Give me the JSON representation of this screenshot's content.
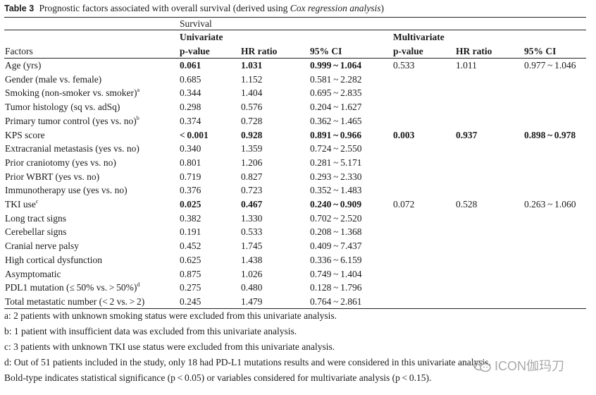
{
  "caption": {
    "label": "Table 3",
    "text": "Prognostic factors associated with overall survival (derived using ",
    "italic": "Cox regression analysis",
    "close": ")"
  },
  "header": {
    "group": "Survival",
    "univariate": "Univariate",
    "multivariate": "Multivariate",
    "factors": "Factors",
    "pvalue": "p-value",
    "hr": "HR ratio",
    "ci": "95% CI"
  },
  "rows": [
    {
      "factor": "Age (yrs)",
      "sup": "",
      "up": "0.061",
      "uhr": "1.031",
      "uci": "0.999 ~ 1.064",
      "ubold": true,
      "mp": "0.533",
      "mhr": "1.011",
      "mci": "0.977 ~ 1.046",
      "mbold": false
    },
    {
      "factor": "Gender (male vs. female)",
      "sup": "",
      "up": "0.685",
      "uhr": "1.152",
      "uci": "0.581 ~ 2.282",
      "ubold": false
    },
    {
      "factor": "Smoking (non-smoker vs. smoker)",
      "sup": "a",
      "up": "0.344",
      "uhr": "1.404",
      "uci": "0.695 ~ 2.835",
      "ubold": false
    },
    {
      "factor": "Tumor histology (sq vs. adSq)",
      "sup": "",
      "up": "0.298",
      "uhr": "0.576",
      "uci": "0.204 ~ 1.627",
      "ubold": false
    },
    {
      "factor": "Primary tumor control (yes vs. no)",
      "sup": "b",
      "up": "0.374",
      "uhr": "0.728",
      "uci": "0.362 ~ 1.465",
      "ubold": false
    },
    {
      "factor": "KPS score",
      "sup": "",
      "up": "< 0.001",
      "uhr": "0.928",
      "uci": "0.891 ~ 0.966",
      "ubold": true,
      "mp": "0.003",
      "mhr": "0.937",
      "mci": "0.898 ~ 0.978",
      "mbold": true
    },
    {
      "factor": "Extracranial metastasis (yes vs. no)",
      "sup": "",
      "up": "0.340",
      "uhr": "1.359",
      "uci": "0.724 ~ 2.550",
      "ubold": false
    },
    {
      "factor": "Prior craniotomy (yes vs. no)",
      "sup": "",
      "up": "0.801",
      "uhr": "1.206",
      "uci": "0.281 ~ 5.171",
      "ubold": false
    },
    {
      "factor": "Prior WBRT (yes vs. no)",
      "sup": "",
      "up": "0.719",
      "uhr": "0.827",
      "uci": "0.293 ~ 2.330",
      "ubold": false
    },
    {
      "factor": "Immunotherapy use (yes vs. no)",
      "sup": "",
      "up": "0.376",
      "uhr": "0.723",
      "uci": "0.352 ~ 1.483",
      "ubold": false
    },
    {
      "factor": "TKI use",
      "sup": "c",
      "up": "0.025",
      "uhr": "0.467",
      "uci": "0.240 ~ 0.909",
      "ubold": true,
      "mp": "0.072",
      "mhr": "0.528",
      "mci": "0.263 ~ 1.060",
      "mbold": false
    },
    {
      "factor": "Long tract signs",
      "sup": "",
      "up": "0.382",
      "uhr": "1.330",
      "uci": "0.702 ~ 2.520",
      "ubold": false
    },
    {
      "factor": "Cerebellar signs",
      "sup": "",
      "up": "0.191",
      "uhr": "0.533",
      "uci": "0.208 ~ 1.368",
      "ubold": false
    },
    {
      "factor": "Cranial nerve palsy",
      "sup": "",
      "up": "0.452",
      "uhr": "1.745",
      "uci": "0.409 ~ 7.437",
      "ubold": false
    },
    {
      "factor": "High cortical dysfunction",
      "sup": "",
      "up": "0.625",
      "uhr": "1.438",
      "uci": "0.336 ~ 6.159",
      "ubold": false
    },
    {
      "factor": "Asymptomatic",
      "sup": "",
      "up": "0.875",
      "uhr": "1.026",
      "uci": "0.749 ~ 1.404",
      "ubold": false
    },
    {
      "factor": "PDL1 mutation (≤ 50% vs. > 50%)",
      "sup": "d",
      "up": "0.275",
      "uhr": "0.480",
      "uci": "0.128 ~ 1.796",
      "ubold": false
    },
    {
      "factor": "Total metastatic number (< 2 vs. > 2)",
      "sup": "",
      "up": "0.245",
      "uhr": "1.479",
      "uci": "0.764 ~ 2.861",
      "ubold": false
    }
  ],
  "notes": [
    "a: 2 patients with unknown smoking status were excluded from this univariate analysis.",
    "b: 1 patient with insufficient data was excluded from this univariate analysis.",
    "c: 3 patients with unknown TKI use status were excluded from this univariate analysis.",
    "d: Out of 51 patients included in the study, only 18 had PD-L1 mutations results and were considered in this univariate analysis.",
    "Bold-type indicates statistical significance (p < 0.05) or variables considered for multivariate analysis (p < 0.15)."
  ],
  "watermark": {
    "text": "ICON伽玛刀",
    "icon": "wechat-icon",
    "color": "#9a9a9a"
  }
}
